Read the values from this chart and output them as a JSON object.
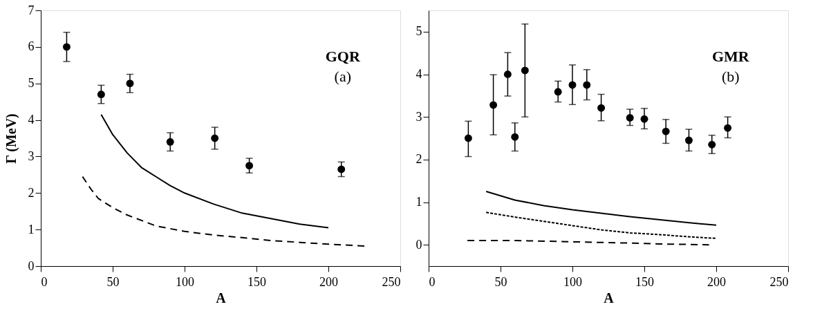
{
  "chart_data": [
    {
      "type": "scatter",
      "xlabel": "A",
      "ylabel": "Γ (MeV)",
      "xlim": [
        0,
        250
      ],
      "ylim": [
        0,
        7
      ],
      "xticks": [
        0,
        50,
        100,
        150,
        200,
        250
      ],
      "yticks": [
        0,
        1,
        2,
        3,
        4,
        5,
        6,
        7
      ],
      "annotations": [
        "GQR",
        "(a)"
      ],
      "series": [
        {
          "type": "scatter",
          "marker": "circle",
          "color": "#000000",
          "x": [
            18,
            42,
            62,
            90,
            121,
            145,
            209
          ],
          "values": [
            6.0,
            4.7,
            5.0,
            3.4,
            3.5,
            2.75,
            2.65
          ],
          "errors": [
            [
              5.6,
              6.4
            ],
            [
              4.45,
              4.95
            ],
            [
              4.75,
              5.25
            ],
            [
              3.15,
              3.65
            ],
            [
              3.2,
              3.8
            ],
            [
              2.55,
              2.95
            ],
            [
              2.45,
              2.85
            ]
          ]
        },
        {
          "type": "line",
          "line_style": "solid",
          "color": "#000000",
          "x": [
            42,
            50,
            60,
            70,
            80,
            90,
            100,
            120,
            140,
            160,
            180,
            200
          ],
          "values": [
            4.15,
            3.6,
            3.1,
            2.7,
            2.45,
            2.2,
            2.0,
            1.7,
            1.45,
            1.3,
            1.15,
            1.05
          ]
        },
        {
          "type": "line",
          "line_style": "dashed",
          "color": "#000000",
          "x": [
            29,
            35,
            40,
            50,
            60,
            80,
            100,
            120,
            140,
            160,
            180,
            200,
            225
          ],
          "values": [
            2.45,
            2.1,
            1.85,
            1.6,
            1.4,
            1.1,
            0.95,
            0.85,
            0.78,
            0.7,
            0.65,
            0.6,
            0.55
          ]
        }
      ]
    },
    {
      "type": "scatter",
      "xlabel": "A",
      "xlim": [
        0,
        250
      ],
      "ylim": [
        -0.5,
        5.5
      ],
      "xticks": [
        0,
        50,
        100,
        150,
        200,
        250
      ],
      "yticks": [
        0,
        1,
        2,
        3,
        4,
        5
      ],
      "annotations": [
        "GMR",
        "(b)"
      ],
      "series": [
        {
          "type": "scatter",
          "marker": "circle",
          "color": "#000000",
          "x": [
            27.6,
            45,
            55,
            60,
            67,
            90,
            100,
            110,
            120,
            140,
            150,
            165,
            181,
            197,
            208
          ],
          "values": [
            2.5,
            3.28,
            4.0,
            2.53,
            4.09,
            3.59,
            3.75,
            3.75,
            3.21,
            2.98,
            2.95,
            2.66,
            2.45,
            2.35,
            2.74
          ],
          "errors": [
            [
              2.07,
              2.9
            ],
            [
              2.58,
              3.99
            ],
            [
              3.49,
              4.51
            ],
            [
              2.2,
              2.86
            ],
            [
              3.0,
              5.18
            ],
            [
              3.35,
              3.84
            ],
            [
              3.29,
              4.22
            ],
            [
              3.4,
              4.11
            ],
            [
              2.91,
              3.53
            ],
            [
              2.8,
              3.18
            ],
            [
              2.72,
              3.2
            ],
            [
              2.38,
              2.94
            ],
            [
              2.2,
              2.71
            ],
            [
              2.14,
              2.57
            ],
            [
              2.51,
              3.0
            ]
          ]
        },
        {
          "type": "line",
          "line_style": "solid",
          "color": "#000000",
          "x": [
            40,
            60,
            80,
            100,
            120,
            140,
            160,
            180,
            200
          ],
          "values": [
            1.25,
            1.05,
            0.92,
            0.82,
            0.74,
            0.66,
            0.59,
            0.52,
            0.46
          ]
        },
        {
          "type": "line",
          "line_style": "dotted",
          "color": "#000000",
          "x": [
            40,
            60,
            80,
            100,
            120,
            140,
            160,
            180,
            200
          ],
          "values": [
            0.76,
            0.65,
            0.55,
            0.45,
            0.35,
            0.28,
            0.24,
            0.19,
            0.15
          ]
        },
        {
          "type": "line",
          "line_style": "dashed",
          "color": "#000000",
          "x": [
            27,
            60,
            100,
            140,
            160,
            195
          ],
          "values": [
            0.1,
            0.1,
            0.07,
            0.04,
            0.02,
            0.0
          ]
        }
      ]
    }
  ]
}
